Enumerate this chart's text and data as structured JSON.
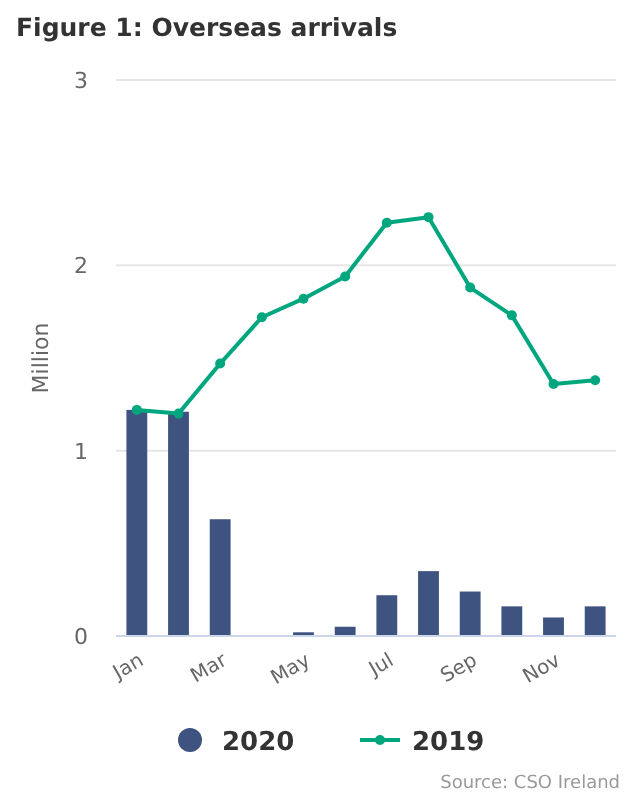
{
  "chart_data": {
    "type": "bar",
    "title": "Figure 1: Overseas arrivals",
    "ylabel": "Million",
    "categories": [
      "Jan",
      null,
      "Mar",
      null,
      "May",
      null,
      "Jul",
      null,
      "Sep",
      null,
      "Nov",
      null
    ],
    "series": [
      {
        "name": "2020",
        "color": "#3f5380",
        "values": [
          1.22,
          1.21,
          0.63,
          0,
          0.02,
          0.05,
          0.22,
          0.35,
          0.24,
          0.16,
          0.1,
          0.16
        ]
      },
      {
        "name": "2019",
        "type": "line",
        "color": "#00a67e",
        "marker": "circle",
        "values": [
          1.22,
          1.2,
          1.47,
          1.72,
          1.82,
          1.94,
          2.23,
          2.26,
          1.88,
          1.73,
          1.36,
          1.38
        ]
      }
    ],
    "ylim": [
      0,
      3
    ],
    "yticks": [
      0,
      1,
      2,
      3
    ],
    "grid": "y",
    "legend": "bottom",
    "annotations": [
      "Source: CSO Ireland"
    ]
  }
}
